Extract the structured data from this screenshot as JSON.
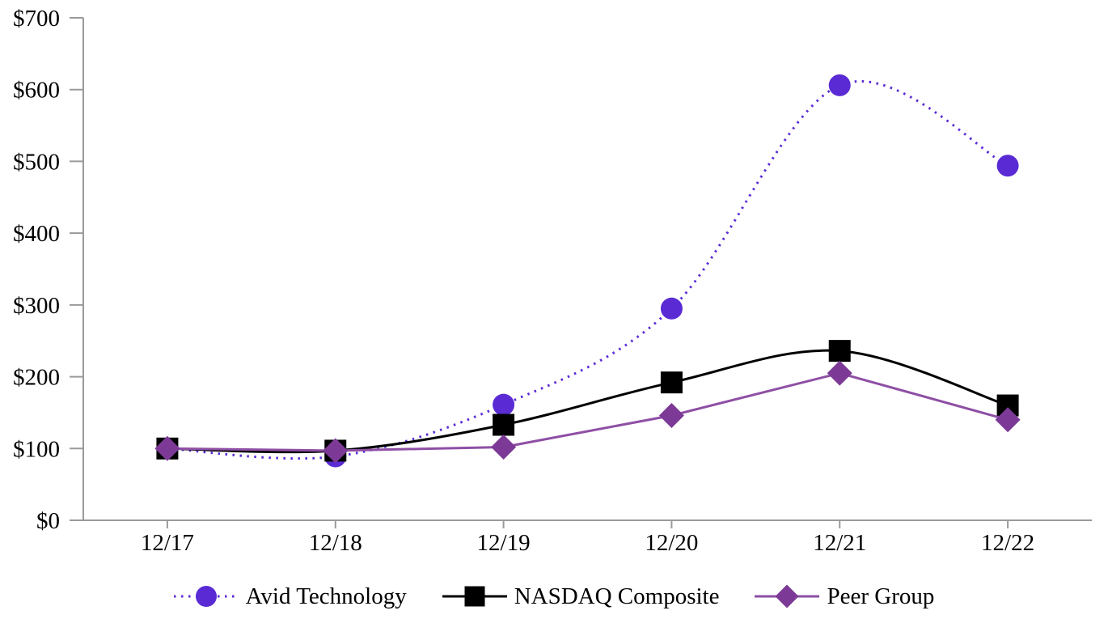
{
  "chart_data": {
    "type": "line",
    "title": "",
    "xlabel": "",
    "ylabel": "",
    "categories": [
      "12/17",
      "12/18",
      "12/19",
      "12/20",
      "12/21",
      "12/22"
    ],
    "series": [
      {
        "name": "Avid Technology",
        "values": [
          100,
          89,
          161,
          295,
          606,
          494
        ],
        "line_color": "#5A2BD5",
        "marker_color": "#5A2BD5",
        "marker": "circle",
        "line_style": "dotted",
        "smooth": true
      },
      {
        "name": "NASDAQ Composite",
        "values": [
          100,
          97,
          133,
          192,
          236,
          160
        ],
        "line_color": "#000000",
        "marker_color": "#000000",
        "marker": "square",
        "line_style": "solid",
        "smooth": true
      },
      {
        "name": "Peer Group",
        "values": [
          100,
          97,
          102,
          146,
          205,
          140
        ],
        "line_color": "#8E4FA5",
        "marker_color": "#7C3A96",
        "marker": "diamond",
        "line_style": "solid",
        "smooth": false
      }
    ],
    "ylim": [
      0,
      700
    ],
    "y_tick_step": 100,
    "y_tick_labels": [
      "$0",
      "$100",
      "$200",
      "$300",
      "$400",
      "$500",
      "$600",
      "$700"
    ],
    "grid": false,
    "legend_position": "bottom",
    "axis_color": "#9A9A9A",
    "text_color": "#000000"
  }
}
